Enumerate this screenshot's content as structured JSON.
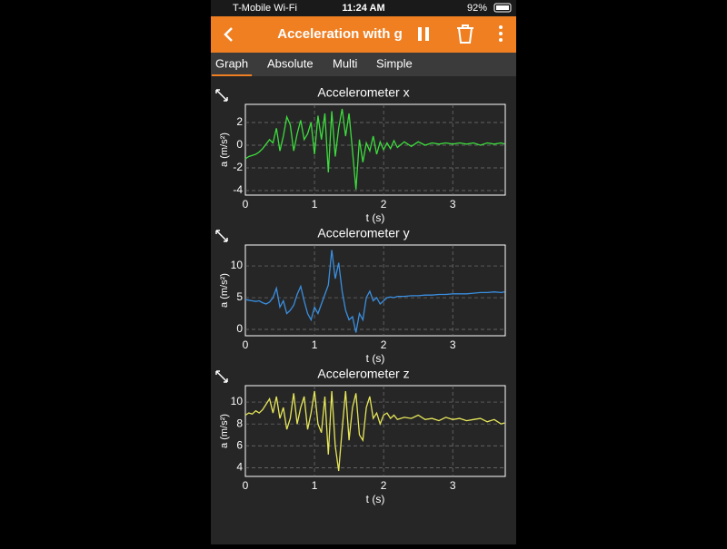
{
  "status_bar": {
    "carrier": "T-Mobile Wi-Fi",
    "time": "11:24 AM",
    "battery": "92%"
  },
  "header": {
    "title": "Acceleration with g"
  },
  "tabs": [
    "Graph",
    "Absolute",
    "Multi",
    "Simple"
  ],
  "chart_data": [
    {
      "type": "line",
      "title": "Accelerometer x",
      "xlabel": "t (s)",
      "ylabel": "a (m/s²)",
      "color": "#3ddc3d",
      "grid": true,
      "xlim": [
        0,
        3.76
      ],
      "xticks": [
        0,
        1,
        2,
        3
      ],
      "ylim": [
        -4.4,
        3.6
      ],
      "yticks": [
        -4,
        -2,
        0,
        2
      ],
      "x": [
        0,
        0.05,
        0.1,
        0.15,
        0.2,
        0.25,
        0.3,
        0.35,
        0.4,
        0.45,
        0.5,
        0.55,
        0.6,
        0.65,
        0.7,
        0.75,
        0.8,
        0.85,
        0.9,
        0.95,
        1,
        1.05,
        1.1,
        1.15,
        1.2,
        1.25,
        1.3,
        1.35,
        1.4,
        1.45,
        1.5,
        1.55,
        1.6,
        1.65,
        1.7,
        1.75,
        1.8,
        1.85,
        1.9,
        1.95,
        2,
        2.05,
        2.1,
        2.15,
        2.2,
        2.3,
        2.4,
        2.5,
        2.6,
        2.7,
        2.8,
        2.9,
        3,
        3.1,
        3.2,
        3.3,
        3.4,
        3.5,
        3.6,
        3.7,
        3.75
      ],
      "values": [
        -1.2,
        -1.0,
        -0.9,
        -0.8,
        -0.6,
        -0.3,
        0.1,
        0.5,
        0.2,
        1.5,
        -0.5,
        0.8,
        2.5,
        1.8,
        -0.5,
        1.0,
        2.2,
        0.5,
        1.0,
        2.0,
        -0.8,
        2.6,
        0.5,
        2.8,
        -2.4,
        3.0,
        -1.0,
        1.5,
        3.2,
        0.8,
        2.8,
        -0.5,
        -3.9,
        0.5,
        -1.5,
        0.2,
        -0.5,
        0.8,
        -0.8,
        0.3,
        -0.4,
        0.2,
        -0.3,
        0.4,
        -0.2,
        0.3,
        -0.1,
        0.3,
        0,
        0.2,
        0.1,
        0.2,
        0.1,
        0.2,
        0.1,
        0.2,
        0,
        0.2,
        0.1,
        0.2,
        0.1
      ]
    },
    {
      "type": "line",
      "title": "Accelerometer y",
      "xlabel": "t (s)",
      "ylabel": "a (m/s²)",
      "color": "#3a8fe0",
      "grid": true,
      "xlim": [
        0,
        3.76
      ],
      "xticks": [
        0,
        1,
        2,
        3
      ],
      "ylim": [
        -1,
        13.3
      ],
      "yticks": [
        0,
        5,
        10
      ],
      "x": [
        0,
        0.05,
        0.1,
        0.15,
        0.2,
        0.25,
        0.3,
        0.35,
        0.4,
        0.45,
        0.5,
        0.55,
        0.6,
        0.65,
        0.7,
        0.75,
        0.8,
        0.85,
        0.9,
        0.95,
        1,
        1.05,
        1.1,
        1.15,
        1.2,
        1.25,
        1.3,
        1.35,
        1.4,
        1.45,
        1.5,
        1.55,
        1.6,
        1.65,
        1.7,
        1.75,
        1.8,
        1.85,
        1.9,
        1.95,
        2,
        2.05,
        2.1,
        2.15,
        2.2,
        2.3,
        2.4,
        2.5,
        2.6,
        2.7,
        2.8,
        2.9,
        3,
        3.1,
        3.2,
        3.3,
        3.4,
        3.5,
        3.6,
        3.7,
        3.75
      ],
      "values": [
        4.7,
        4.6,
        4.5,
        4.4,
        4.5,
        4.2,
        4.0,
        4.3,
        5.0,
        6.5,
        3.5,
        4.5,
        2.5,
        3.0,
        3.8,
        5.5,
        6.8,
        4.5,
        2.5,
        1.5,
        3.5,
        2.5,
        4.0,
        5.5,
        7.0,
        12.5,
        8.0,
        10.5,
        6.0,
        3.0,
        1.5,
        2.0,
        -0.5,
        2.5,
        1.5,
        5.0,
        6.0,
        4.5,
        5.0,
        4.0,
        4.5,
        5.0,
        5.1,
        5.0,
        5.2,
        5.2,
        5.3,
        5.3,
        5.4,
        5.4,
        5.5,
        5.5,
        5.6,
        5.6,
        5.6,
        5.7,
        5.8,
        5.8,
        5.9,
        5.8,
        5.9
      ]
    },
    {
      "type": "line",
      "title": "Accelerometer z",
      "xlabel": "t (s)",
      "ylabel": "a (m/s²)",
      "color": "#e6e65a",
      "grid": true,
      "xlim": [
        0,
        3.76
      ],
      "xticks": [
        0,
        1,
        2,
        3
      ],
      "ylim": [
        3.2,
        11.5
      ],
      "yticks": [
        4,
        6,
        8,
        10
      ],
      "x": [
        0,
        0.05,
        0.1,
        0.15,
        0.2,
        0.25,
        0.3,
        0.35,
        0.4,
        0.45,
        0.5,
        0.55,
        0.6,
        0.65,
        0.7,
        0.75,
        0.8,
        0.85,
        0.9,
        0.95,
        1,
        1.05,
        1.1,
        1.15,
        1.2,
        1.25,
        1.3,
        1.35,
        1.4,
        1.45,
        1.5,
        1.55,
        1.6,
        1.65,
        1.7,
        1.75,
        1.8,
        1.85,
        1.9,
        1.95,
        2,
        2.05,
        2.1,
        2.15,
        2.2,
        2.3,
        2.4,
        2.5,
        2.6,
        2.7,
        2.8,
        2.9,
        3,
        3.1,
        3.2,
        3.3,
        3.4,
        3.5,
        3.6,
        3.7,
        3.75
      ],
      "values": [
        8.8,
        9.0,
        8.9,
        9.2,
        9.0,
        9.3,
        9.8,
        10.3,
        9.0,
        10.5,
        8.5,
        9.5,
        7.5,
        8.5,
        10.8,
        8.0,
        9.5,
        10.5,
        7.5,
        9.0,
        11.0,
        8.0,
        7.2,
        10.5,
        5.2,
        11.0,
        6.0,
        3.7,
        7.5,
        11.0,
        6.5,
        9.5,
        10.8,
        7.0,
        6.5,
        9.5,
        10.5,
        8.5,
        9.0,
        8.0,
        8.8,
        9.0,
        8.5,
        8.8,
        8.4,
        8.6,
        8.5,
        8.8,
        8.4,
        8.5,
        8.3,
        8.6,
        8.4,
        8.5,
        8.3,
        8.4,
        8.5,
        8.2,
        8.4,
        8.0,
        8.1
      ]
    }
  ]
}
